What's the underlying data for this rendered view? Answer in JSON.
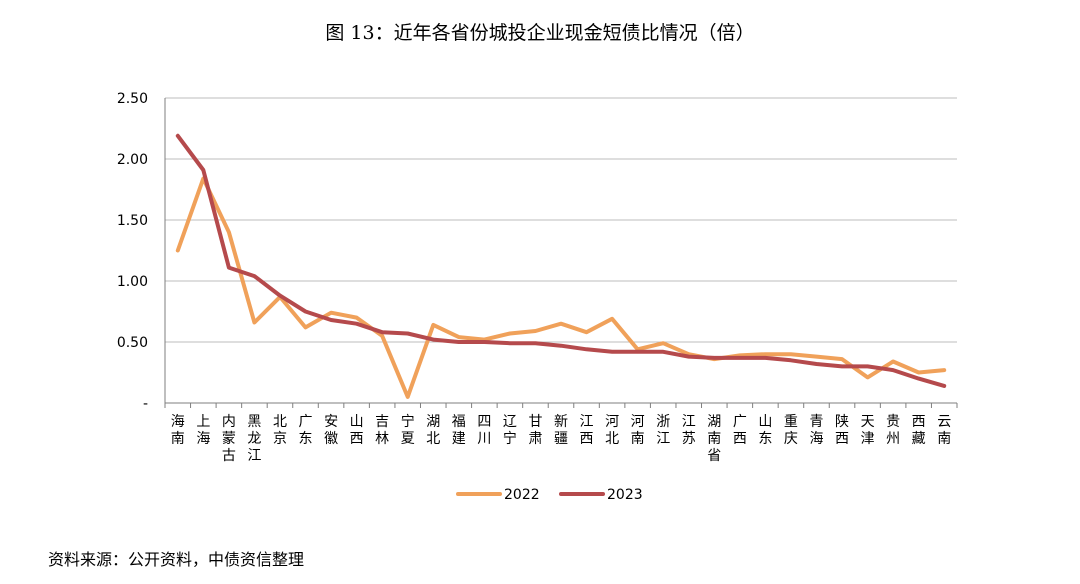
{
  "title": "图 13：近年各省份城投企业现金短债比情况（倍）",
  "source": "资料来源：公开资料，中债资信整理",
  "chart_data": {
    "type": "line",
    "categories": [
      "海南",
      "上海",
      "内蒙古",
      "黑龙江",
      "北京",
      "广东",
      "安徽",
      "山西",
      "吉林",
      "宁夏",
      "湖北",
      "福建",
      "四川",
      "辽宁",
      "甘肃",
      "新疆",
      "江西",
      "河北",
      "河南",
      "浙江",
      "江苏",
      "湖南省",
      "广西",
      "山东",
      "重庆",
      "青海",
      "陕西",
      "天津",
      "贵州",
      "西藏",
      "云南"
    ],
    "series": [
      {
        "name": "2022",
        "color": "#f0a15a",
        "values": [
          1.25,
          1.84,
          1.4,
          0.66,
          0.87,
          0.62,
          0.74,
          0.7,
          0.55,
          0.05,
          0.64,
          0.54,
          0.52,
          0.57,
          0.59,
          0.65,
          0.58,
          0.69,
          0.44,
          0.49,
          0.4,
          0.36,
          0.39,
          0.4,
          0.4,
          0.38,
          0.36,
          0.21,
          0.34,
          0.25,
          0.27
        ]
      },
      {
        "name": "2023",
        "color": "#b54a4c",
        "values": [
          2.19,
          1.91,
          1.11,
          1.04,
          0.88,
          0.75,
          0.68,
          0.65,
          0.58,
          0.57,
          0.52,
          0.5,
          0.5,
          0.49,
          0.49,
          0.47,
          0.44,
          0.42,
          0.42,
          0.42,
          0.38,
          0.37,
          0.37,
          0.37,
          0.35,
          0.32,
          0.3,
          0.3,
          0.27,
          0.2,
          0.14
        ]
      }
    ],
    "y_ticks": [
      "-",
      "0.50",
      "1.00",
      "1.50",
      "2.00",
      "2.50"
    ],
    "ylim": [
      0,
      2.5
    ],
    "grid": true,
    "legend_position": "bottom-center"
  }
}
